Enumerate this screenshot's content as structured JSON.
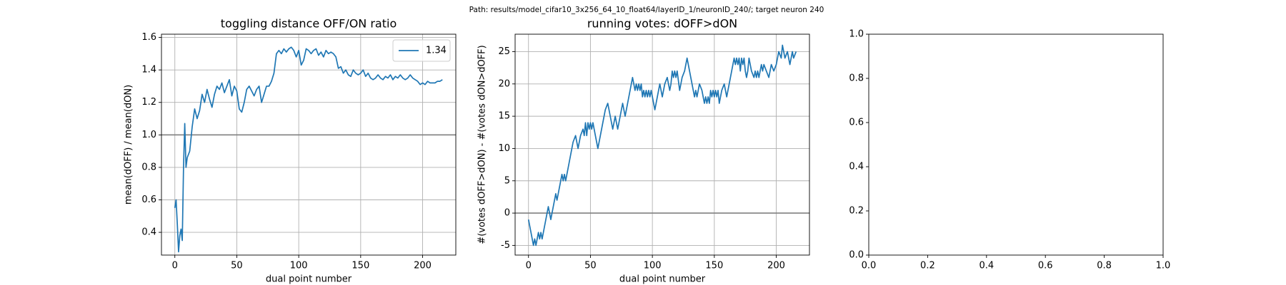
{
  "title": "Path: results/model_cifar10_3x256_64_10_float64/layerID_1/neuronID_240/; target neuron 240",
  "chart_data": [
    {
      "type": "line",
      "title": "toggling distance OFF/ON ratio",
      "xlabel": "dual point number",
      "ylabel": "mean(dOFF) / mean(dON)",
      "xlim": [
        -10.8,
        226.8
      ],
      "ylim": [
        0.26,
        1.62
      ],
      "xticks": [
        0,
        50,
        100,
        150,
        200
      ],
      "yticks": [
        0.4,
        0.6,
        0.8,
        {
          "value": 1,
          "label": "1.0"
        },
        1.2,
        1.4,
        1.6
      ],
      "grid": true,
      "legend": "upper right",
      "hlines": [
        {
          "value": 1,
          "color": "#808080"
        }
      ],
      "x": [
        0,
        1,
        2,
        3,
        4,
        5,
        6,
        7,
        8,
        9,
        10,
        12,
        14,
        16,
        18,
        20,
        22,
        24,
        26,
        28,
        30,
        32,
        34,
        36,
        38,
        40,
        42,
        44,
        46,
        48,
        50,
        52,
        54,
        56,
        58,
        60,
        62,
        64,
        66,
        68,
        70,
        72,
        74,
        76,
        78,
        80,
        82,
        84,
        86,
        88,
        90,
        92,
        94,
        96,
        98,
        100,
        102,
        104,
        106,
        108,
        110,
        112,
        114,
        116,
        118,
        120,
        122,
        124,
        126,
        128,
        130,
        132,
        134,
        136,
        138,
        140,
        142,
        144,
        146,
        148,
        150,
        152,
        154,
        156,
        158,
        160,
        162,
        164,
        166,
        168,
        170,
        172,
        174,
        176,
        178,
        180,
        182,
        184,
        186,
        188,
        190,
        192,
        194,
        196,
        198,
        200,
        202,
        204,
        206,
        208,
        210,
        212,
        214,
        216
      ],
      "series": [
        {
          "name": "1.34",
          "color": "#1f77b4",
          "values": [
            0.55,
            0.6,
            0.45,
            0.28,
            0.38,
            0.42,
            0.35,
            0.8,
            1.07,
            0.8,
            0.86,
            0.9,
            1.05,
            1.16,
            1.1,
            1.15,
            1.25,
            1.2,
            1.28,
            1.22,
            1.17,
            1.25,
            1.3,
            1.28,
            1.32,
            1.26,
            1.3,
            1.34,
            1.24,
            1.3,
            1.27,
            1.16,
            1.14,
            1.2,
            1.28,
            1.3,
            1.27,
            1.24,
            1.28,
            1.3,
            1.2,
            1.25,
            1.3,
            1.3,
            1.33,
            1.38,
            1.5,
            1.52,
            1.5,
            1.53,
            1.51,
            1.53,
            1.54,
            1.52,
            1.48,
            1.52,
            1.43,
            1.46,
            1.53,
            1.52,
            1.5,
            1.52,
            1.53,
            1.49,
            1.51,
            1.48,
            1.52,
            1.5,
            1.51,
            1.5,
            1.48,
            1.41,
            1.42,
            1.38,
            1.4,
            1.37,
            1.36,
            1.4,
            1.38,
            1.37,
            1.38,
            1.4,
            1.36,
            1.38,
            1.35,
            1.34,
            1.35,
            1.37,
            1.35,
            1.34,
            1.36,
            1.35,
            1.37,
            1.34,
            1.36,
            1.35,
            1.37,
            1.35,
            1.34,
            1.35,
            1.37,
            1.35,
            1.34,
            1.33,
            1.31,
            1.32,
            1.31,
            1.33,
            1.32,
            1.32,
            1.32,
            1.33,
            1.33,
            1.34
          ]
        }
      ]
    },
    {
      "type": "line",
      "title": "running votes: dOFF>dON",
      "xlabel": "dual point number",
      "ylabel": "#(votes dOFF>dON) - #(votes dON>dOFF)",
      "xlim": [
        -10.8,
        226.8
      ],
      "ylim": [
        -6.5,
        27.7
      ],
      "xticks": [
        0,
        50,
        100,
        150,
        200
      ],
      "yticks": [
        -5,
        0,
        5,
        10,
        15,
        20,
        25
      ],
      "grid": true,
      "hlines": [
        {
          "value": 0,
          "color": "#808080"
        }
      ],
      "x": [
        0,
        2,
        3,
        4,
        5,
        6,
        7,
        8,
        9,
        10,
        11,
        12,
        13,
        14,
        15,
        16,
        17,
        18,
        19,
        20,
        21,
        22,
        23,
        24,
        25,
        26,
        27,
        28,
        29,
        30,
        31,
        32,
        34,
        36,
        38,
        40,
        42,
        44,
        45,
        46,
        47,
        48,
        49,
        50,
        51,
        52,
        54,
        56,
        58,
        60,
        62,
        64,
        66,
        68,
        70,
        72,
        74,
        76,
        78,
        80,
        82,
        84,
        86,
        87,
        88,
        89,
        90,
        91,
        92,
        93,
        94,
        95,
        96,
        97,
        98,
        99,
        100,
        102,
        104,
        106,
        108,
        110,
        112,
        114,
        115,
        116,
        117,
        118,
        119,
        120,
        122,
        124,
        126,
        128,
        130,
        132,
        134,
        135,
        136,
        137,
        138,
        140,
        141,
        142,
        143,
        144,
        145,
        146,
        147,
        148,
        149,
        150,
        151,
        152,
        153,
        154,
        156,
        158,
        160,
        162,
        164,
        166,
        167,
        168,
        169,
        170,
        171,
        172,
        173,
        174,
        175,
        176,
        177,
        178,
        179,
        180,
        182,
        183,
        184,
        185,
        186,
        188,
        189,
        190,
        192,
        194,
        196,
        198,
        200,
        202,
        204,
        205,
        207,
        209,
        211,
        213,
        214,
        216
      ],
      "series": [
        {
          "color": "#1f77b4",
          "values": [
            -1,
            -3,
            -4,
            -5,
            -4,
            -5,
            -4,
            -3,
            -4,
            -3,
            -4,
            -3,
            -2,
            -1,
            0,
            1,
            0,
            -1,
            0,
            1,
            2,
            3,
            2,
            3,
            4,
            5,
            6,
            5,
            6,
            5,
            6,
            7,
            9,
            11,
            12,
            10,
            12,
            13,
            12,
            14,
            12,
            14,
            13,
            14,
            13,
            14,
            12,
            10,
            12,
            14,
            16,
            17,
            15,
            13,
            15,
            13,
            15,
            17,
            15,
            17,
            19,
            21,
            19,
            20,
            19,
            20,
            19,
            20,
            18,
            19,
            18,
            19,
            18,
            19,
            18,
            19,
            18,
            16,
            18,
            20,
            18,
            20,
            21,
            19,
            20,
            22,
            21,
            22,
            21,
            22,
            19,
            21,
            22,
            24,
            22,
            20,
            18,
            19,
            18,
            19,
            20,
            19,
            18,
            17,
            18,
            17,
            18,
            17,
            19,
            18,
            19,
            18,
            19,
            18,
            19,
            17,
            19,
            20,
            18,
            20,
            22,
            24,
            23,
            24,
            23,
            24,
            22,
            24,
            23,
            24,
            22,
            21,
            22,
            24,
            23,
            22,
            21,
            22,
            21,
            22,
            21,
            23,
            22,
            23,
            22,
            21,
            23,
            22,
            23,
            25,
            24,
            26,
            24,
            25,
            23,
            25,
            24,
            25
          ]
        }
      ]
    },
    {
      "type": "line",
      "xlim": [
        0,
        1
      ],
      "ylim": [
        0,
        1
      ],
      "xticks": [
        {
          "value": 0,
          "label": "0.0"
        },
        0.2,
        0.4,
        0.6,
        0.8,
        {
          "value": 1,
          "label": "1.0"
        }
      ],
      "yticks": [
        {
          "value": 0,
          "label": "0.0"
        },
        0.2,
        0.4,
        0.6,
        0.8,
        {
          "value": 1,
          "label": "1.0"
        }
      ],
      "grid": false,
      "series": []
    }
  ]
}
